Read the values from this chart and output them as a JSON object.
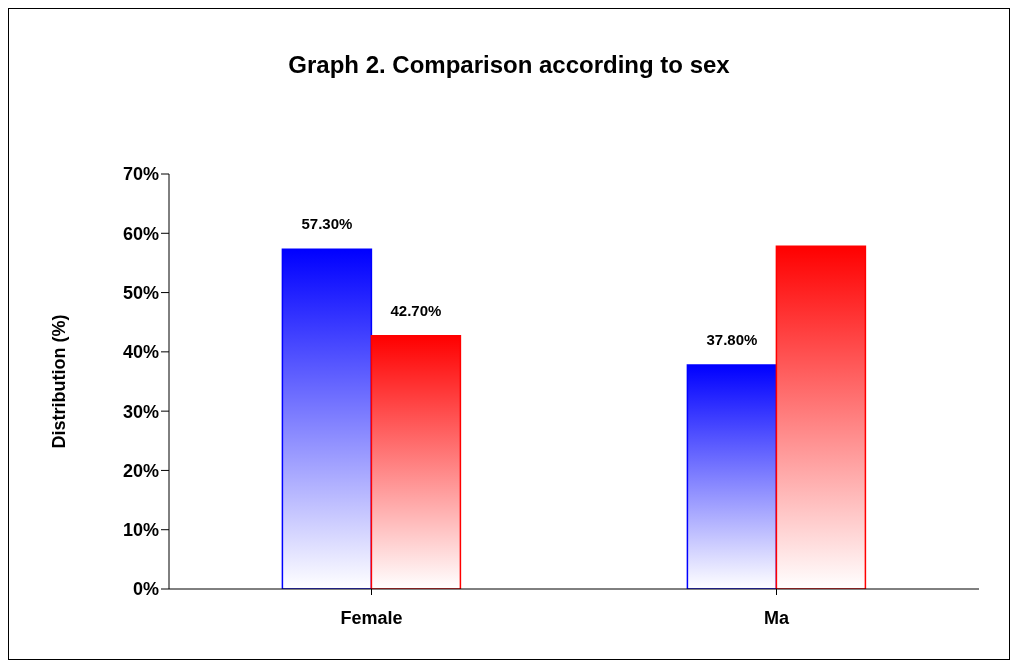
{
  "chart_data": {
    "type": "bar",
    "title": "Graph 2. Comparison according to sex",
    "ylabel": "Distribution (%)",
    "categories": [
      "Female",
      "Ma"
    ],
    "series": [
      {
        "color": "#0000ff",
        "values": [
          57.3,
          37.8
        ],
        "value_labels": [
          "57.30%",
          "37.80%"
        ]
      },
      {
        "color": "#ff0000",
        "values": [
          42.7,
          57.8
        ],
        "value_labels": [
          "42.70%",
          null
        ]
      }
    ],
    "ylim": [
      0,
      70
    ],
    "yticks": [
      {
        "value": 0,
        "label": "0%"
      },
      {
        "value": 10,
        "label": "10%"
      },
      {
        "value": 20,
        "label": "20%"
      },
      {
        "value": 30,
        "label": "30%"
      },
      {
        "value": 40,
        "label": "40%"
      },
      {
        "value": 50,
        "label": "50%"
      },
      {
        "value": 60,
        "label": "60%"
      },
      {
        "value": 70,
        "label": "70%"
      }
    ],
    "grid": false
  }
}
